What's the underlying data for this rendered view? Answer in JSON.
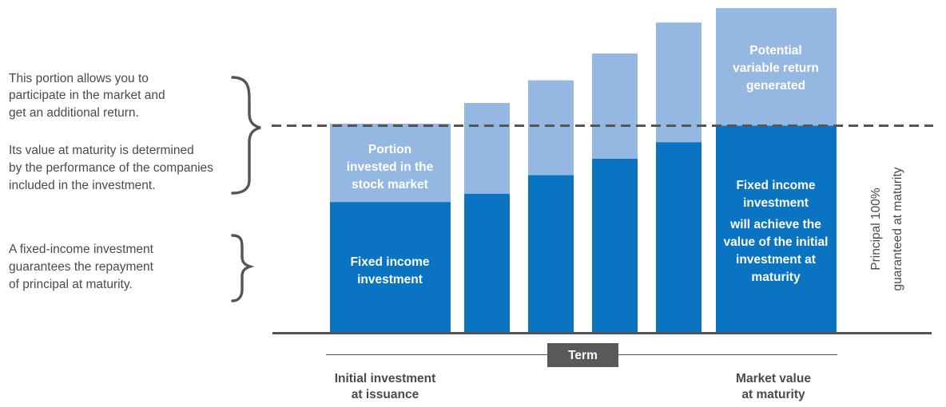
{
  "notes": {
    "market_lines": [
      "This portion allows you to",
      "participate in the market and",
      "get an additional return."
    ],
    "maturity_lines": [
      "Its value at maturity is determined",
      "by the performance of the companies",
      "included in the investment."
    ],
    "fixed_lines": [
      "A fixed-income investment",
      "guarantees the repayment",
      "of principal at maturity."
    ]
  },
  "bar_labels": {
    "first_top": [
      "Portion",
      "invested in the",
      "stock market"
    ],
    "first_bottom": [
      "Fixed income",
      "investment"
    ],
    "last_top": [
      "Potential",
      "variable return",
      "generated"
    ],
    "last_bottom_a": [
      "Fixed income",
      "investment"
    ],
    "last_bottom_b": [
      "will achieve the",
      "value of the initial",
      "investment at",
      "maturity"
    ]
  },
  "axis": {
    "term": "Term",
    "left": [
      "Initial investment",
      "at issuance"
    ],
    "right": [
      "Market value",
      "at maturity"
    ],
    "vertical": [
      "Principal 100%",
      "guaranteed at maturity"
    ]
  },
  "colors": {
    "fixed": "#0a74c2",
    "variable": "#95b8e3",
    "text": "#4a4a4a",
    "axis": "#555555"
  },
  "chart_data": {
    "type": "bar",
    "stacked": true,
    "series": [
      {
        "name": "Fixed income investment",
        "values": [
          63,
          67,
          76,
          84,
          92,
          100
        ]
      },
      {
        "name": "Potential variable return generated",
        "values": [
          38,
          44,
          46,
          51,
          58,
          57
        ]
      }
    ],
    "guarantee_line": 100,
    "ylim": [
      0,
      158
    ]
  }
}
